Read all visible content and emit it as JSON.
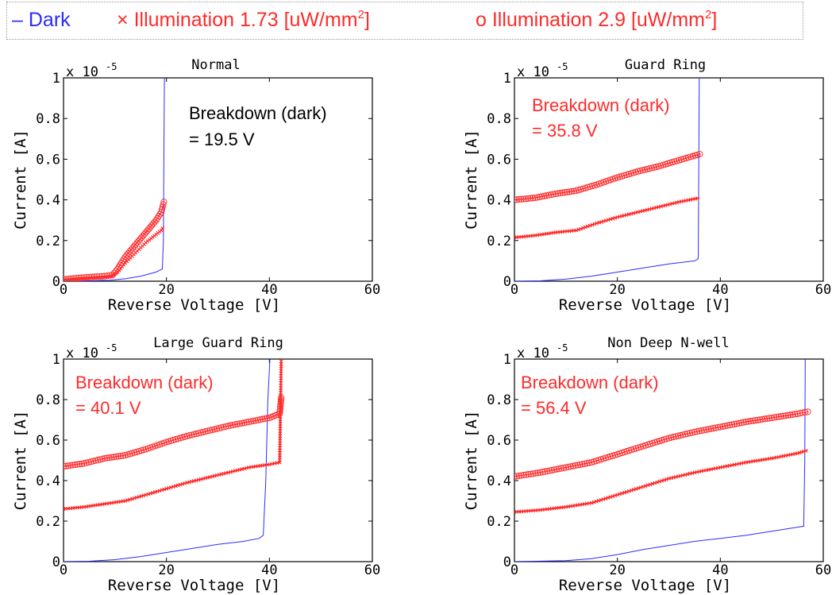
{
  "legend": {
    "dark_marker": "–",
    "dark_label": "Dark",
    "ill1_marker": "×",
    "ill1_label_main": "Illumination 1.73 [uW/mm",
    "ill1_sup": "2",
    "ill1_close": "]",
    "ill2_marker": "o",
    "ill2_label_main": "Illumination 2.9   [uW/mm",
    "ill2_sup": "2",
    "ill2_close": "]",
    "colors": {
      "dark": "#2b2bff",
      "illum": "#ff2a2a"
    }
  },
  "chart_data": [
    {
      "type": "line",
      "title": "Normal",
      "xlabel": "Reverse Voltage [V]",
      "ylabel": "Current [A]",
      "scale_label": "x 10",
      "scale_exp": "-5",
      "xlim": [
        0,
        60
      ],
      "ylim": [
        0,
        1
      ],
      "xticks": [
        "0",
        "20",
        "40",
        "60"
      ],
      "yticks": [
        "0",
        "0.2",
        "0.4",
        "0.6",
        "0.8",
        "1"
      ],
      "annotation": [
        "Breakdown (dark)",
        "= 19.5 V"
      ],
      "annotation_color": "#000000",
      "series": [
        {
          "name": "Dark",
          "marker": "line",
          "color": "#2b2bff",
          "x": [
            0,
            5,
            9,
            12,
            15,
            18,
            19.2,
            19.4,
            19.5,
            19.6
          ],
          "y": [
            0,
            0.002,
            0.005,
            0.012,
            0.025,
            0.045,
            0.06,
            0.2,
            0.6,
            1.0
          ]
        },
        {
          "name": "Illumination 1.73 [uW/mm2]",
          "marker": "x",
          "color": "#ff2a2a",
          "x": [
            0,
            2,
            4,
            6,
            8,
            9.5,
            10.5,
            12,
            14,
            16,
            18,
            19,
            19.5
          ],
          "y": [
            0.005,
            0.01,
            0.014,
            0.017,
            0.02,
            0.025,
            0.045,
            0.09,
            0.14,
            0.19,
            0.23,
            0.25,
            0.27
          ]
        },
        {
          "name": "Illumination 2.9 [uW/mm2]",
          "marker": "o",
          "color": "#ff2a2a",
          "x": [
            0,
            2,
            4,
            6,
            8,
            9.5,
            10.5,
            12,
            14,
            16,
            18,
            19,
            19.5
          ],
          "y": [
            0.008,
            0.014,
            0.018,
            0.022,
            0.025,
            0.03,
            0.06,
            0.12,
            0.18,
            0.24,
            0.3,
            0.34,
            0.39
          ]
        }
      ]
    },
    {
      "type": "line",
      "title": "Guard Ring",
      "xlabel": "Reverse Voltage [V]",
      "ylabel": "Current [A]",
      "scale_label": "x 10",
      "scale_exp": "-5",
      "xlim": [
        0,
        60
      ],
      "ylim": [
        0,
        1
      ],
      "xticks": [
        "0",
        "20",
        "40",
        "60"
      ],
      "yticks": [
        "0",
        "0.2",
        "0.4",
        "0.6",
        "0.8",
        "1"
      ],
      "annotation": [
        "Breakdown (dark)",
        "= 35.8 V"
      ],
      "annotation_color": "#ff2a2a",
      "series": [
        {
          "name": "Dark",
          "marker": "line",
          "color": "#2b2bff",
          "x": [
            0,
            5,
            10,
            15,
            20,
            25,
            30,
            35,
            35.7,
            35.8,
            35.9
          ],
          "y": [
            0,
            0.002,
            0.01,
            0.025,
            0.045,
            0.065,
            0.085,
            0.1,
            0.11,
            0.5,
            1.0
          ]
        },
        {
          "name": "Illumination 1.73 [uW/mm2]",
          "marker": "x",
          "color": "#ff2a2a",
          "x": [
            0,
            4,
            8,
            12,
            16,
            20,
            24,
            28,
            32,
            36
          ],
          "y": [
            0.215,
            0.225,
            0.24,
            0.25,
            0.285,
            0.315,
            0.34,
            0.365,
            0.39,
            0.41
          ]
        },
        {
          "name": "Illumination 2.9 [uW/mm2]",
          "marker": "o",
          "color": "#ff2a2a",
          "x": [
            0,
            4,
            8,
            12,
            16,
            20,
            24,
            28,
            32,
            36
          ],
          "y": [
            0.4,
            0.41,
            0.43,
            0.445,
            0.475,
            0.51,
            0.54,
            0.565,
            0.595,
            0.625
          ]
        }
      ]
    },
    {
      "type": "line",
      "title": "Large Guard Ring",
      "xlabel": "Reverse Voltage [V]",
      "ylabel": "Current [A]",
      "scale_label": "x 10",
      "scale_exp": "-5",
      "xlim": [
        0,
        60
      ],
      "ylim": [
        0,
        1
      ],
      "xticks": [
        "0",
        "20",
        "40",
        "60"
      ],
      "yticks": [
        "0",
        "0.2",
        "0.4",
        "0.6",
        "0.8",
        "1"
      ],
      "annotation": [
        "Breakdown (dark)",
        "= 40.1 V"
      ],
      "annotation_color": "#ff2a2a",
      "series": [
        {
          "name": "Dark",
          "marker": "line",
          "color": "#2b2bff",
          "x": [
            0,
            5,
            10,
            15,
            20,
            25,
            30,
            35,
            38,
            38.8,
            39.3,
            39.7,
            40.1
          ],
          "y": [
            0,
            0.002,
            0.01,
            0.025,
            0.045,
            0.065,
            0.085,
            0.1,
            0.115,
            0.13,
            0.4,
            0.8,
            1.0
          ]
        },
        {
          "name": "Illumination 1.73 [uW/mm2]",
          "marker": "x",
          "color": "#ff2a2a",
          "x": [
            0,
            4,
            8,
            12,
            16,
            20,
            24,
            28,
            32,
            36,
            40,
            42,
            42.3
          ],
          "y": [
            0.26,
            0.27,
            0.285,
            0.3,
            0.33,
            0.36,
            0.39,
            0.415,
            0.44,
            0.465,
            0.48,
            0.49,
            1.0
          ]
        },
        {
          "name": "Illumination 2.9 [uW/mm2]",
          "marker": "o",
          "color": "#ff2a2a",
          "x": [
            0,
            4,
            8,
            12,
            16,
            20,
            24,
            28,
            32,
            36,
            40,
            42,
            42.3
          ],
          "y": [
            0.47,
            0.485,
            0.51,
            0.525,
            0.555,
            0.59,
            0.62,
            0.645,
            0.67,
            0.69,
            0.71,
            0.73,
            0.81
          ]
        }
      ]
    },
    {
      "type": "line",
      "title": "Non Deep N-well",
      "xlabel": "Reverse Voltage [V]",
      "ylabel": "Current [A]",
      "scale_label": "x 10",
      "scale_exp": "-5",
      "xlim": [
        0,
        60
      ],
      "ylim": [
        0,
        1
      ],
      "xticks": [
        "0",
        "20",
        "40",
        "60"
      ],
      "yticks": [
        "0",
        "0.2",
        "0.4",
        "0.6",
        "0.8",
        "1"
      ],
      "annotation": [
        "Breakdown (dark)",
        "= 56.4 V"
      ],
      "annotation_color": "#ff2a2a",
      "series": [
        {
          "name": "Dark",
          "marker": "line",
          "color": "#2b2bff",
          "x": [
            0,
            10,
            15,
            20,
            25,
            30,
            35,
            40,
            45,
            50,
            55,
            56.2,
            56.4,
            56.5
          ],
          "y": [
            0,
            0.005,
            0.015,
            0.035,
            0.06,
            0.08,
            0.1,
            0.115,
            0.13,
            0.15,
            0.17,
            0.175,
            0.5,
            1.0
          ]
        },
        {
          "name": "Illumination 1.73 [uW/mm2]",
          "marker": "x",
          "color": "#ff2a2a",
          "x": [
            0,
            5,
            10,
            15,
            20,
            25,
            30,
            35,
            40,
            45,
            50,
            55,
            57
          ],
          "y": [
            0.245,
            0.255,
            0.27,
            0.29,
            0.33,
            0.37,
            0.41,
            0.44,
            0.465,
            0.49,
            0.51,
            0.535,
            0.55
          ]
        },
        {
          "name": "Illumination 2.9 [uW/mm2]",
          "marker": "o",
          "color": "#ff2a2a",
          "x": [
            0,
            5,
            10,
            15,
            20,
            25,
            30,
            35,
            40,
            45,
            50,
            55,
            57
          ],
          "y": [
            0.42,
            0.44,
            0.465,
            0.49,
            0.53,
            0.57,
            0.61,
            0.64,
            0.665,
            0.69,
            0.71,
            0.73,
            0.74
          ]
        }
      ]
    }
  ]
}
